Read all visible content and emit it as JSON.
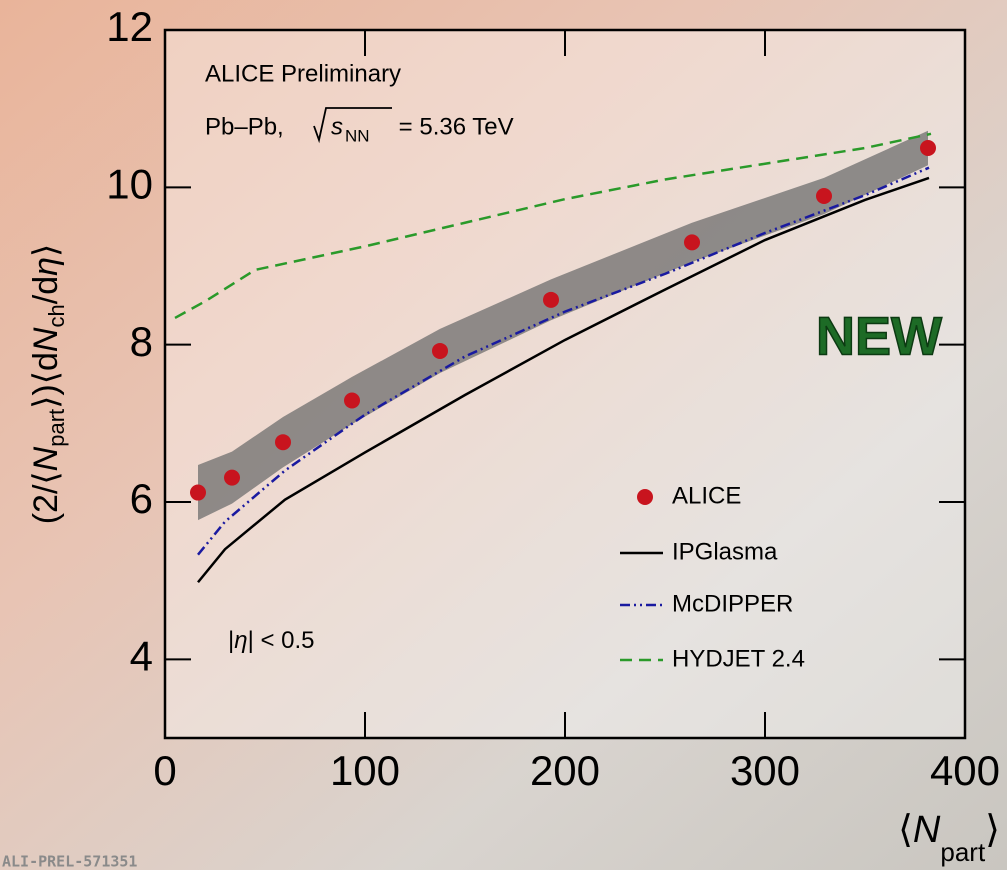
{
  "chart_data": {
    "type": "scatter-lines",
    "xlim": [
      0,
      400
    ],
    "xticks": [
      0,
      100,
      200,
      300,
      400
    ],
    "ylim": [
      3,
      12
    ],
    "yticks": [
      4,
      6,
      8,
      10,
      12
    ],
    "y_label": [
      "(2/⟨",
      "N",
      "part",
      "⟩)⟨d",
      "N",
      "ch",
      "/d",
      "η",
      "⟩"
    ],
    "x_label": [
      "⟨",
      "N",
      "part",
      "⟩"
    ],
    "annotations": {
      "experiment": "ALICE Preliminary",
      "system": [
        "Pb–Pb, ",
        "s",
        "NN",
        " = 5.36 TeV"
      ],
      "eta": [
        "|",
        "η",
        "| < 0.5"
      ],
      "badge": "NEW",
      "id": "ALI-PREL-571351"
    },
    "series": [
      {
        "name": "ALICE",
        "kind": "points",
        "color": "#c8141e",
        "band_color": "#6e6e6e",
        "x": [
          16.5,
          33.5,
          59,
          93.5,
          137.5,
          193,
          263.5,
          329.5,
          381.5
        ],
        "values": [
          6.12,
          6.31,
          6.76,
          7.29,
          7.92,
          8.57,
          9.3,
          9.89,
          10.5
        ],
        "errors": [
          0.35,
          0.33,
          0.32,
          0.3,
          0.28,
          0.26,
          0.25,
          0.23,
          0.22
        ]
      },
      {
        "name": "IPGlasma",
        "kind": "line",
        "dash": "solid",
        "color": "#000000",
        "x": [
          16.5,
          30,
          60,
          100,
          150,
          200,
          250,
          300,
          350,
          382
        ],
        "values": [
          4.98,
          5.4,
          6.03,
          6.63,
          7.36,
          8.06,
          8.7,
          9.33,
          9.84,
          10.12
        ]
      },
      {
        "name": "McDIPPER",
        "kind": "line",
        "dash": "dashdotdot",
        "color": "#1a1aa0",
        "x": [
          16.5,
          30,
          60,
          100,
          150,
          200,
          250,
          300,
          350,
          382
        ],
        "values": [
          5.33,
          5.75,
          6.4,
          7.11,
          7.85,
          8.42,
          8.9,
          9.42,
          9.9,
          10.25
        ]
      },
      {
        "name": "HYDJET 2.4",
        "kind": "line",
        "dash": "dashed",
        "color": "#2a9a2a",
        "x": [
          5,
          20,
          45,
          100,
          150,
          200,
          250,
          300,
          350,
          383
        ],
        "values": [
          8.34,
          8.55,
          8.95,
          9.25,
          9.55,
          9.85,
          10.1,
          10.3,
          10.5,
          10.68
        ]
      }
    ]
  }
}
